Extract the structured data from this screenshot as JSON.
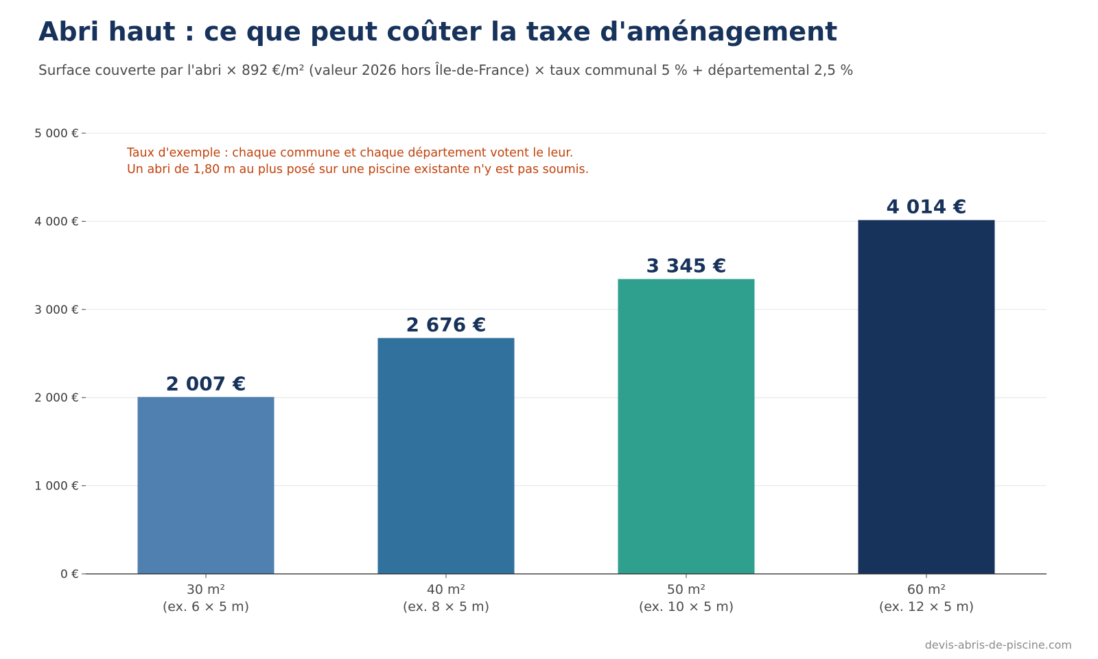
{
  "header": {
    "title": "Abri haut : ce que peut coûter la taxe d'aménagement",
    "subtitle": "Surface couverte par l'abri × 892 €/m² (valeur 2026 hors Île-de-France) × taux communal 5 % + départemental 2,5 %"
  },
  "annotation": {
    "line1": "Taux d'exemple : chaque commune et chaque département votent le leur.",
    "line2": "Un abri de 1,80 m au plus posé sur une piscine existante n'y est pas soumis."
  },
  "footer": {
    "source": "devis-abris-de-piscine.com"
  },
  "chart_data": {
    "type": "bar",
    "title": "Abri haut : ce que peut coûter la taxe d'aménagement",
    "subtitle": "Surface couverte par l'abri × 892 €/m² (valeur 2026 hors Île-de-France) × taux communal 5 % + départemental 2,5 %",
    "xlabel": "",
    "ylabel": "",
    "categories": [
      [
        "30 m²",
        "(ex. 6 × 5 m)"
      ],
      [
        "40 m²",
        "(ex. 8 × 5 m)"
      ],
      [
        "50 m²",
        "(ex. 10 × 5 m)"
      ],
      [
        "60 m²",
        "(ex. 12 × 5 m)"
      ]
    ],
    "values": [
      2007,
      2676,
      3345,
      4014
    ],
    "value_labels": [
      "2 007 €",
      "2 676 €",
      "3 345 €",
      "4 014 €"
    ],
    "bar_colors": [
      "#5080b0",
      "#31719e",
      "#2fa08e",
      "#17325b"
    ],
    "ylim": [
      0,
      5000
    ],
    "yticks": [
      0,
      1000,
      2000,
      3000,
      4000,
      5000
    ],
    "ytick_labels": [
      "0 €",
      "1 000 €",
      "2 000 €",
      "3 000 €",
      "4 000 €",
      "5 000 €"
    ],
    "grid": true,
    "colors": {
      "title": "#17325b",
      "annotation": "#c0420c",
      "gridline": "#e6e6e6",
      "axis": "#222222"
    }
  }
}
